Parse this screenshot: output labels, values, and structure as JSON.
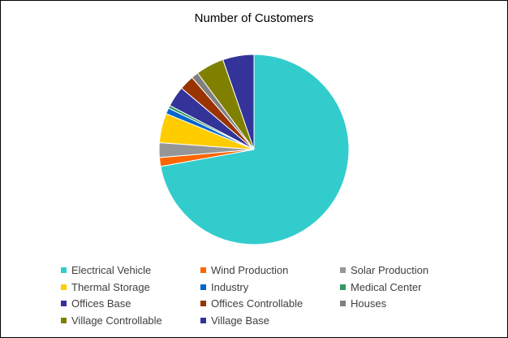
{
  "chart_data": {
    "type": "pie",
    "title": "Number of Customers",
    "categories": [
      "Electrical Vehicle",
      "Wind Production",
      "Solar Production",
      "Thermal Storage",
      "Industry",
      "Medical Center",
      "Offices Base",
      "Offices Controllable",
      "Houses",
      "Village Controllable",
      "Village Base"
    ],
    "values": [
      72,
      1.5,
      2.5,
      5,
      1,
      0.5,
      3.5,
      2.5,
      1.2,
      4.8,
      5.3
    ],
    "colors": [
      "#33CCCC",
      "#FF6600",
      "#969696",
      "#FFCC00",
      "#0066CC",
      "#339966",
      "#333399",
      "#993300",
      "#808080",
      "#808000",
      "#333399"
    ],
    "legend_position": "bottom"
  }
}
